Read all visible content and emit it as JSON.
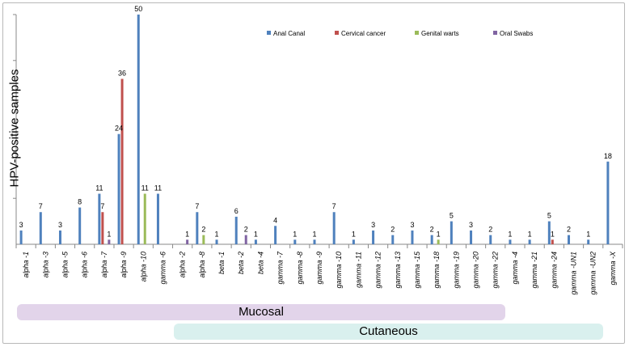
{
  "chart_data": {
    "type": "bar",
    "ylabel": "HPV-positive samples",
    "ylim": [
      0,
      50
    ],
    "categories": [
      "alpha -1",
      "alpha -3",
      "alpha -5",
      "alpha -6",
      "alpha -7",
      "alpha -9",
      "alpha -10",
      "gamma -6",
      "alpha -2",
      "alpha -8",
      "beta -1",
      "beta -2",
      "beta -4",
      "gamma -7",
      "gamma -8",
      "gamma -9",
      "gamma -10",
      "gamma -11",
      "gamma -12",
      "gamma -13",
      "gamma -15",
      "gamma -18",
      "gamma -19",
      "gamma -20",
      "gamma -22",
      "gamma -4",
      "gamma -21",
      "gamma -24",
      "gamma -UN1",
      "gamma -UN2",
      "gamma -X"
    ],
    "series": [
      {
        "name": "Anal Canal",
        "color": "#4f81bd",
        "values": [
          3,
          7,
          3,
          8,
          11,
          24,
          50,
          11,
          0,
          7,
          1,
          6,
          1,
          4,
          1,
          1,
          7,
          1,
          3,
          2,
          3,
          2,
          5,
          3,
          2,
          1,
          1,
          5,
          2,
          1,
          18
        ]
      },
      {
        "name": "Cervical cancer",
        "color": "#c0504d",
        "values": [
          0,
          0,
          0,
          0,
          7,
          36,
          0,
          0,
          0,
          0,
          0,
          0,
          0,
          0,
          0,
          0,
          0,
          0,
          0,
          0,
          0,
          0,
          0,
          0,
          0,
          0,
          0,
          1,
          0,
          0,
          0
        ]
      },
      {
        "name": "Genital warts",
        "color": "#9bbb59",
        "values": [
          0,
          0,
          0,
          0,
          0,
          0,
          11,
          0,
          0,
          2,
          0,
          0,
          0,
          0,
          0,
          0,
          0,
          0,
          0,
          0,
          0,
          1,
          0,
          0,
          0,
          0,
          0,
          0,
          0,
          0,
          0
        ]
      },
      {
        "name": "Oral Swabs",
        "color": "#8064a2",
        "values": [
          0,
          0,
          0,
          0,
          1,
          0,
          0,
          0,
          1,
          0,
          0,
          2,
          0,
          0,
          0,
          0,
          0,
          0,
          0,
          0,
          0,
          0,
          0,
          0,
          0,
          0,
          0,
          0,
          0,
          0,
          0
        ]
      }
    ],
    "groups": [
      {
        "label": "Mucosal"
      },
      {
        "label": "Cutaneous"
      }
    ]
  }
}
